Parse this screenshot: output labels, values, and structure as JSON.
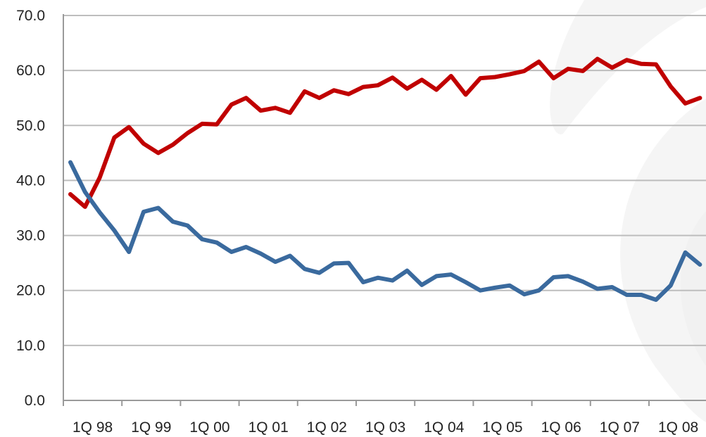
{
  "chart_data": {
    "type": "line",
    "title": "",
    "xlabel": "",
    "ylabel": "",
    "ylim": [
      0,
      70
    ],
    "yticks": [
      "0.0",
      "10.0",
      "20.0",
      "30.0",
      "40.0",
      "50.0",
      "60.0",
      "70.0"
    ],
    "xticks": [
      "1Q 98",
      "1Q 99",
      "1Q 00",
      "1Q 01",
      "1Q 02",
      "1Q 03",
      "1Q 04",
      "1Q 05",
      "1Q 06",
      "1Q 07",
      "1Q 08"
    ],
    "grid": true,
    "legend": "none",
    "x": [
      "1Q 98",
      "2Q 98",
      "3Q 98",
      "4Q 98",
      "1Q 99",
      "2Q 99",
      "3Q 99",
      "4Q 99",
      "1Q 00",
      "2Q 00",
      "3Q 00",
      "4Q 00",
      "1Q 01",
      "2Q 01",
      "3Q 01",
      "4Q 01",
      "1Q 02",
      "2Q 02",
      "3Q 02",
      "4Q 02",
      "1Q 03",
      "2Q 03",
      "3Q 03",
      "4Q 03",
      "1Q 04",
      "2Q 04",
      "3Q 04",
      "4Q 04",
      "1Q 05",
      "2Q 05",
      "3Q 05",
      "4Q 05",
      "1Q 06",
      "2Q 06",
      "3Q 06",
      "4Q 06",
      "1Q 07",
      "2Q 07",
      "3Q 07",
      "4Q 07",
      "1Q 08",
      "2Q 08",
      "3Q 08",
      "4Q 08"
    ],
    "series": [
      {
        "color": "#c00000",
        "values": [
          37.5,
          35.2,
          40.5,
          47.8,
          49.7,
          46.7,
          45.0,
          46.5,
          48.6,
          50.3,
          50.2,
          53.8,
          55.0,
          52.7,
          53.2,
          52.3,
          56.2,
          55.0,
          56.4,
          55.7,
          57.0,
          57.3,
          58.7,
          56.7,
          58.3,
          56.5,
          59.0,
          55.6,
          58.6,
          58.8,
          59.3,
          59.9,
          61.6,
          58.6,
          60.3,
          59.9,
          62.1,
          60.5,
          61.9,
          61.2,
          61.1,
          57.1,
          54.0,
          55.0
        ]
      },
      {
        "color": "#3a6a9e",
        "values": [
          43.3,
          37.9,
          34.2,
          30.9,
          27.0,
          34.3,
          35.0,
          32.5,
          31.8,
          29.3,
          28.7,
          27.0,
          27.9,
          26.7,
          25.2,
          26.3,
          23.9,
          23.2,
          24.9,
          25.0,
          21.5,
          22.3,
          21.8,
          23.6,
          21.0,
          22.6,
          22.9,
          21.5,
          20.0,
          20.5,
          20.9,
          19.3,
          20.0,
          22.4,
          22.6,
          21.6,
          20.3,
          20.6,
          19.2,
          19.2,
          18.3,
          20.9,
          26.9,
          24.7
        ]
      }
    ]
  }
}
